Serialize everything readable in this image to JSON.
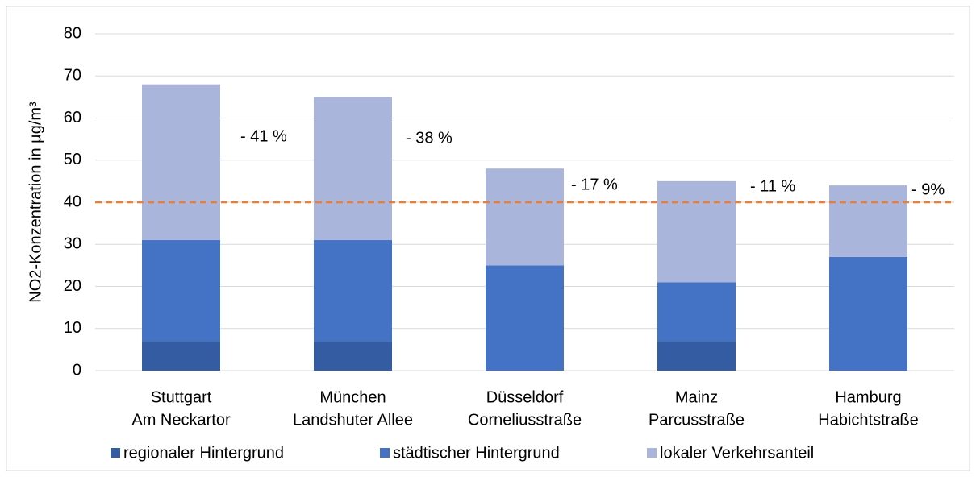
{
  "chart_data": {
    "type": "stacked_bar",
    "categories": [
      [
        "Stuttgart",
        "Am Neckartor"
      ],
      [
        "München",
        "Landshuter Allee"
      ],
      [
        "Düsseldorf",
        "Corneliusstraße"
      ],
      [
        "Mainz",
        "Parcusstraße"
      ],
      [
        "Hamburg",
        "Habichtstraße"
      ]
    ],
    "series": [
      {
        "name": "regionaler Hintergrund",
        "color": "#345ca3",
        "values": [
          7,
          7,
          0,
          7,
          0
        ]
      },
      {
        "name": "städtischer Hintergrund",
        "color": "#4472c4",
        "values": [
          24,
          24,
          25,
          14,
          27
        ]
      },
      {
        "name": "lokaler Verkehrsanteil",
        "color": "#a9b5da",
        "values": [
          37,
          34,
          23,
          24,
          17
        ]
      }
    ],
    "ylabel": "NO2-Konzentration in µg/m³",
    "ylim": [
      0,
      80
    ],
    "yticks": [
      0,
      10,
      20,
      30,
      40,
      50,
      60,
      70,
      80
    ],
    "grid": true,
    "threshold": {
      "value": 40,
      "color": "#ed7d31"
    },
    "annotations": [
      "- 41 %",
      "- 38 %",
      "- 17 %",
      "- 11 %",
      "- 9%"
    ],
    "legend": "bottom"
  }
}
